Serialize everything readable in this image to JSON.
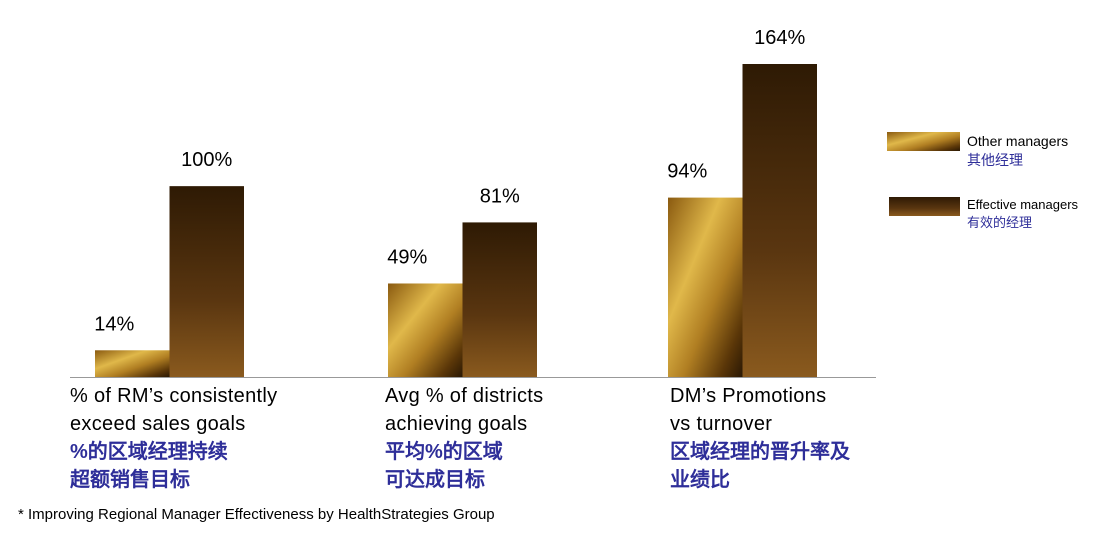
{
  "chart_data": {
    "type": "bar",
    "categories": [
      "% of RM’s consistently\nexceed sales goals",
      "Avg % of districts\nachieving goals",
      "DM’s Promotions\nvs turnover"
    ],
    "categories_cn": [
      "%的区域经理持续\n超额销售目标",
      "平均%的区域\n可达成目标",
      "区域经理的晋升率及\n业绩比"
    ],
    "series": [
      {
        "name": "Other managers",
        "name_cn": "其他经理",
        "color": "#c99a2e",
        "values": [
          14,
          49,
          94
        ],
        "value_labels": [
          "14%",
          "49%",
          "94%"
        ]
      },
      {
        "name": "Effective managers",
        "name_cn": "有效的经理",
        "color": "#4a2a08",
        "values": [
          100,
          81,
          164
        ],
        "value_labels": [
          "100%",
          "81%",
          "164%"
        ]
      }
    ],
    "legend": "right",
    "footnote": "* Improving Regional Manager Effectiveness by HealthStrategies Group"
  }
}
